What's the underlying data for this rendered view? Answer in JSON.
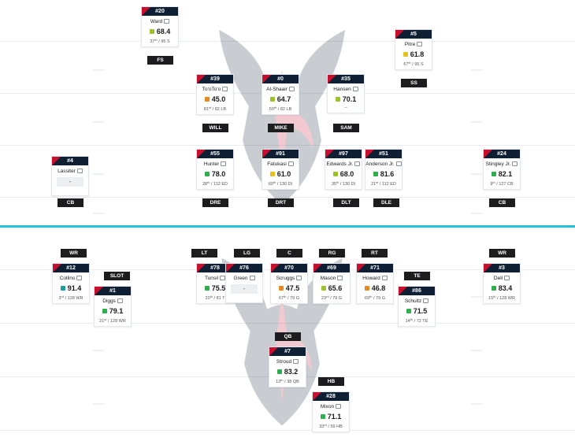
{
  "colors": {
    "navy": "#0f2035",
    "red": "#c8102e",
    "line_of_scrimmage": "#20c3d8",
    "grade_elite": "#1aa0a0",
    "grade_good": "#2eae4c",
    "grade_above": "#9cc22a",
    "grade_average": "#e2c21e",
    "grade_below": "#e68a1f"
  },
  "defense": {
    "positions": [
      "FS",
      "SS",
      "WILL",
      "MIKE",
      "SAM",
      "CB",
      "DRE",
      "DRT",
      "DLT",
      "DLE",
      "CB"
    ],
    "players": [
      {
        "number": "#20",
        "name": "Ward",
        "grade": "68.4",
        "tier": "above",
        "rank": "37",
        "suffix": "th",
        "rank_of": " / 95 S"
      },
      {
        "number": "#5",
        "name": "Pitre",
        "grade": "61.8",
        "tier": "average",
        "rank": "67",
        "suffix": "th",
        "rank_of": " / 95 S"
      },
      {
        "number": "#39",
        "name": "To'oTo'o",
        "grade": "45.0",
        "tier": "below",
        "rank": "81",
        "suffix": "st",
        "rank_of": " / 82 LB"
      },
      {
        "number": "#0",
        "name": "Al-Shaair",
        "grade": "64.7",
        "tier": "above",
        "rank": "50",
        "suffix": "th",
        "rank_of": " / 82 LB"
      },
      {
        "number": "#35",
        "name": "Hansen",
        "grade": "70.1",
        "tier": "above",
        "rank_text": "--"
      },
      {
        "number": "#4",
        "name": "Lassiter",
        "grade_text": "-",
        "rank_text": ""
      },
      {
        "number": "#55",
        "name": "Hunter",
        "grade": "78.0",
        "tier": "good",
        "rank": "28",
        "suffix": "th",
        "rank_of": " / 112 ED"
      },
      {
        "number": "#91",
        "name": "Fatukasi",
        "grade": "61.0",
        "tier": "average",
        "rank": "60",
        "suffix": "th",
        "rank_of": " / 130 DI"
      },
      {
        "number": "#97",
        "name": "Edwards Jr.",
        "grade": "68.0",
        "tier": "above",
        "rank": "35",
        "suffix": "th",
        "rank_of": " / 130 DI"
      },
      {
        "number": "#51",
        "name": "Anderson Jr.",
        "grade": "81.6",
        "tier": "good",
        "rank": "21",
        "suffix": "st",
        "rank_of": " / 112 ED"
      },
      {
        "number": "#24",
        "name": "Stingley Jr.",
        "grade": "82.1",
        "tier": "good",
        "rank": "9",
        "suffix": "th",
        "rank_of": " / 127 CB"
      }
    ]
  },
  "offense": {
    "positions": [
      "WR",
      "SLOT",
      "LT",
      "LG",
      "C",
      "RG",
      "RT",
      "TE",
      "WR",
      "QB",
      "HB"
    ],
    "players": [
      {
        "number": "#12",
        "name": "Collins",
        "grade": "91.4",
        "tier": "elite",
        "rank": "3",
        "suffix": "rd",
        "rank_of": " / 128 WR"
      },
      {
        "number": "#1",
        "name": "Diggs",
        "grade": "79.1",
        "tier": "good",
        "rank": "21",
        "suffix": "st",
        "rank_of": " / 128 WR"
      },
      {
        "number": "#78",
        "name": "Tunsil",
        "grade": "75.5",
        "tier": "good",
        "rank": "20",
        "suffix": "th",
        "rank_of": " / 81 T"
      },
      {
        "number": "#76",
        "name": "Green",
        "grade_text": "-",
        "rank_text": ""
      },
      {
        "number": "#70",
        "name": "Scruggs",
        "grade": "47.5",
        "tier": "below",
        "rank": "67",
        "suffix": "th",
        "rank_of": " / 79 G"
      },
      {
        "number": "#69",
        "name": "Mason",
        "grade": "65.6",
        "tier": "above",
        "rank": "23",
        "suffix": "rd",
        "rank_of": " / 79 G"
      },
      {
        "number": "#71",
        "name": "Howard",
        "grade": "46.8",
        "tier": "below",
        "rank": "69",
        "suffix": "th",
        "rank_of": " / 79 G"
      },
      {
        "number": "#86",
        "name": "Schultz",
        "grade": "71.5",
        "tier": "good",
        "rank": "14",
        "suffix": "th",
        "rank_of": " / 72 TE"
      },
      {
        "number": "#3",
        "name": "Dell",
        "grade": "83.4",
        "tier": "good",
        "rank": "15",
        "suffix": "th",
        "rank_of": " / 128 WR"
      },
      {
        "number": "#7",
        "name": "Stroud",
        "grade": "83.2",
        "tier": "good",
        "rank": "13",
        "suffix": "th",
        "rank_of": " / 38 QB"
      },
      {
        "number": "#28",
        "name": "Mixon",
        "grade": "71.1",
        "tier": "good",
        "rank": "33",
        "suffix": "rd",
        "rank_of": " / 59 HB"
      }
    ]
  }
}
